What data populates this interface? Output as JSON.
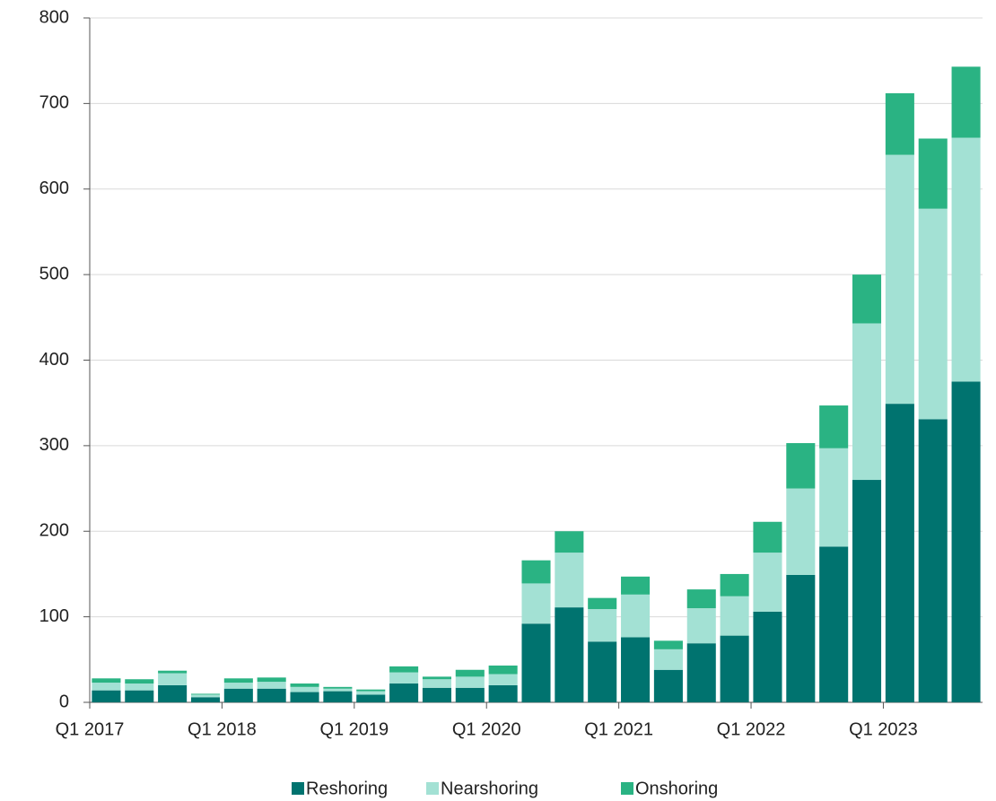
{
  "chart_data": {
    "type": "stacked_bar",
    "categories": [
      "Q1 2017",
      null,
      null,
      null,
      "Q1 2018",
      null,
      null,
      null,
      "Q1 2019",
      null,
      null,
      null,
      "Q1 2020",
      null,
      null,
      null,
      "Q1 2021",
      null,
      null,
      null,
      "Q1 2022",
      null,
      null,
      null,
      "Q1 2023",
      null,
      null
    ],
    "series": [
      {
        "name": "Reshoring",
        "color": "#00736f",
        "values": [
          14,
          14,
          20,
          6,
          16,
          16,
          12,
          13,
          9,
          22,
          17,
          17,
          20,
          92,
          111,
          71,
          76,
          38,
          69,
          78,
          106,
          149,
          182,
          260,
          349,
          331,
          375
        ]
      },
      {
        "name": "Nearshoring",
        "color": "#a3e1d4",
        "values": [
          9,
          8,
          14,
          3,
          7,
          8,
          6,
          3,
          4,
          13,
          10,
          13,
          13,
          47,
          64,
          38,
          50,
          24,
          41,
          46,
          69,
          101,
          115,
          183,
          291,
          246,
          285
        ]
      },
      {
        "name": "Onshoring",
        "color": "#2ab383",
        "values": [
          5,
          5,
          3,
          1,
          5,
          5,
          4,
          2,
          2,
          7,
          3,
          8,
          10,
          27,
          25,
          13,
          21,
          10,
          22,
          26,
          36,
          53,
          50,
          57,
          72,
          82,
          83
        ]
      }
    ],
    "ylim": [
      0,
      800
    ],
    "yticks": [
      0,
      100,
      200,
      300,
      400,
      500,
      600,
      700,
      800
    ],
    "grid": true,
    "legend": "bottom"
  }
}
